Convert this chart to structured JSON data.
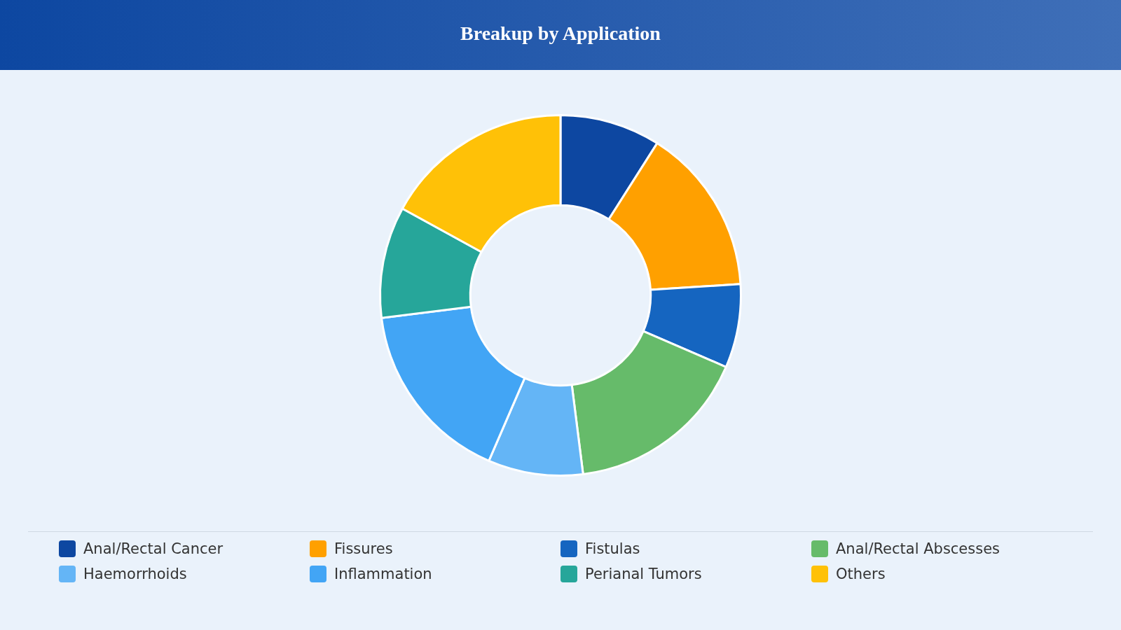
{
  "chart_data": {
    "type": "donut",
    "title": "Breakup by Application",
    "categories": [
      "Anal/Rectal Cancer",
      "Fissures",
      "Fistulas",
      "Anal/Rectal Abscesses",
      "Haemorrhoids",
      "Inflammation",
      "Perianal Tumors",
      "Others"
    ],
    "values": [
      9,
      15,
      7.5,
      16.5,
      8.5,
      16.5,
      10,
      17
    ],
    "colors": [
      "#0d47a1",
      "#ffa000",
      "#1565c0",
      "#66bb6a",
      "#64b5f6",
      "#42a5f5",
      "#26a69a",
      "#ffc107"
    ],
    "legend": "bottom"
  }
}
